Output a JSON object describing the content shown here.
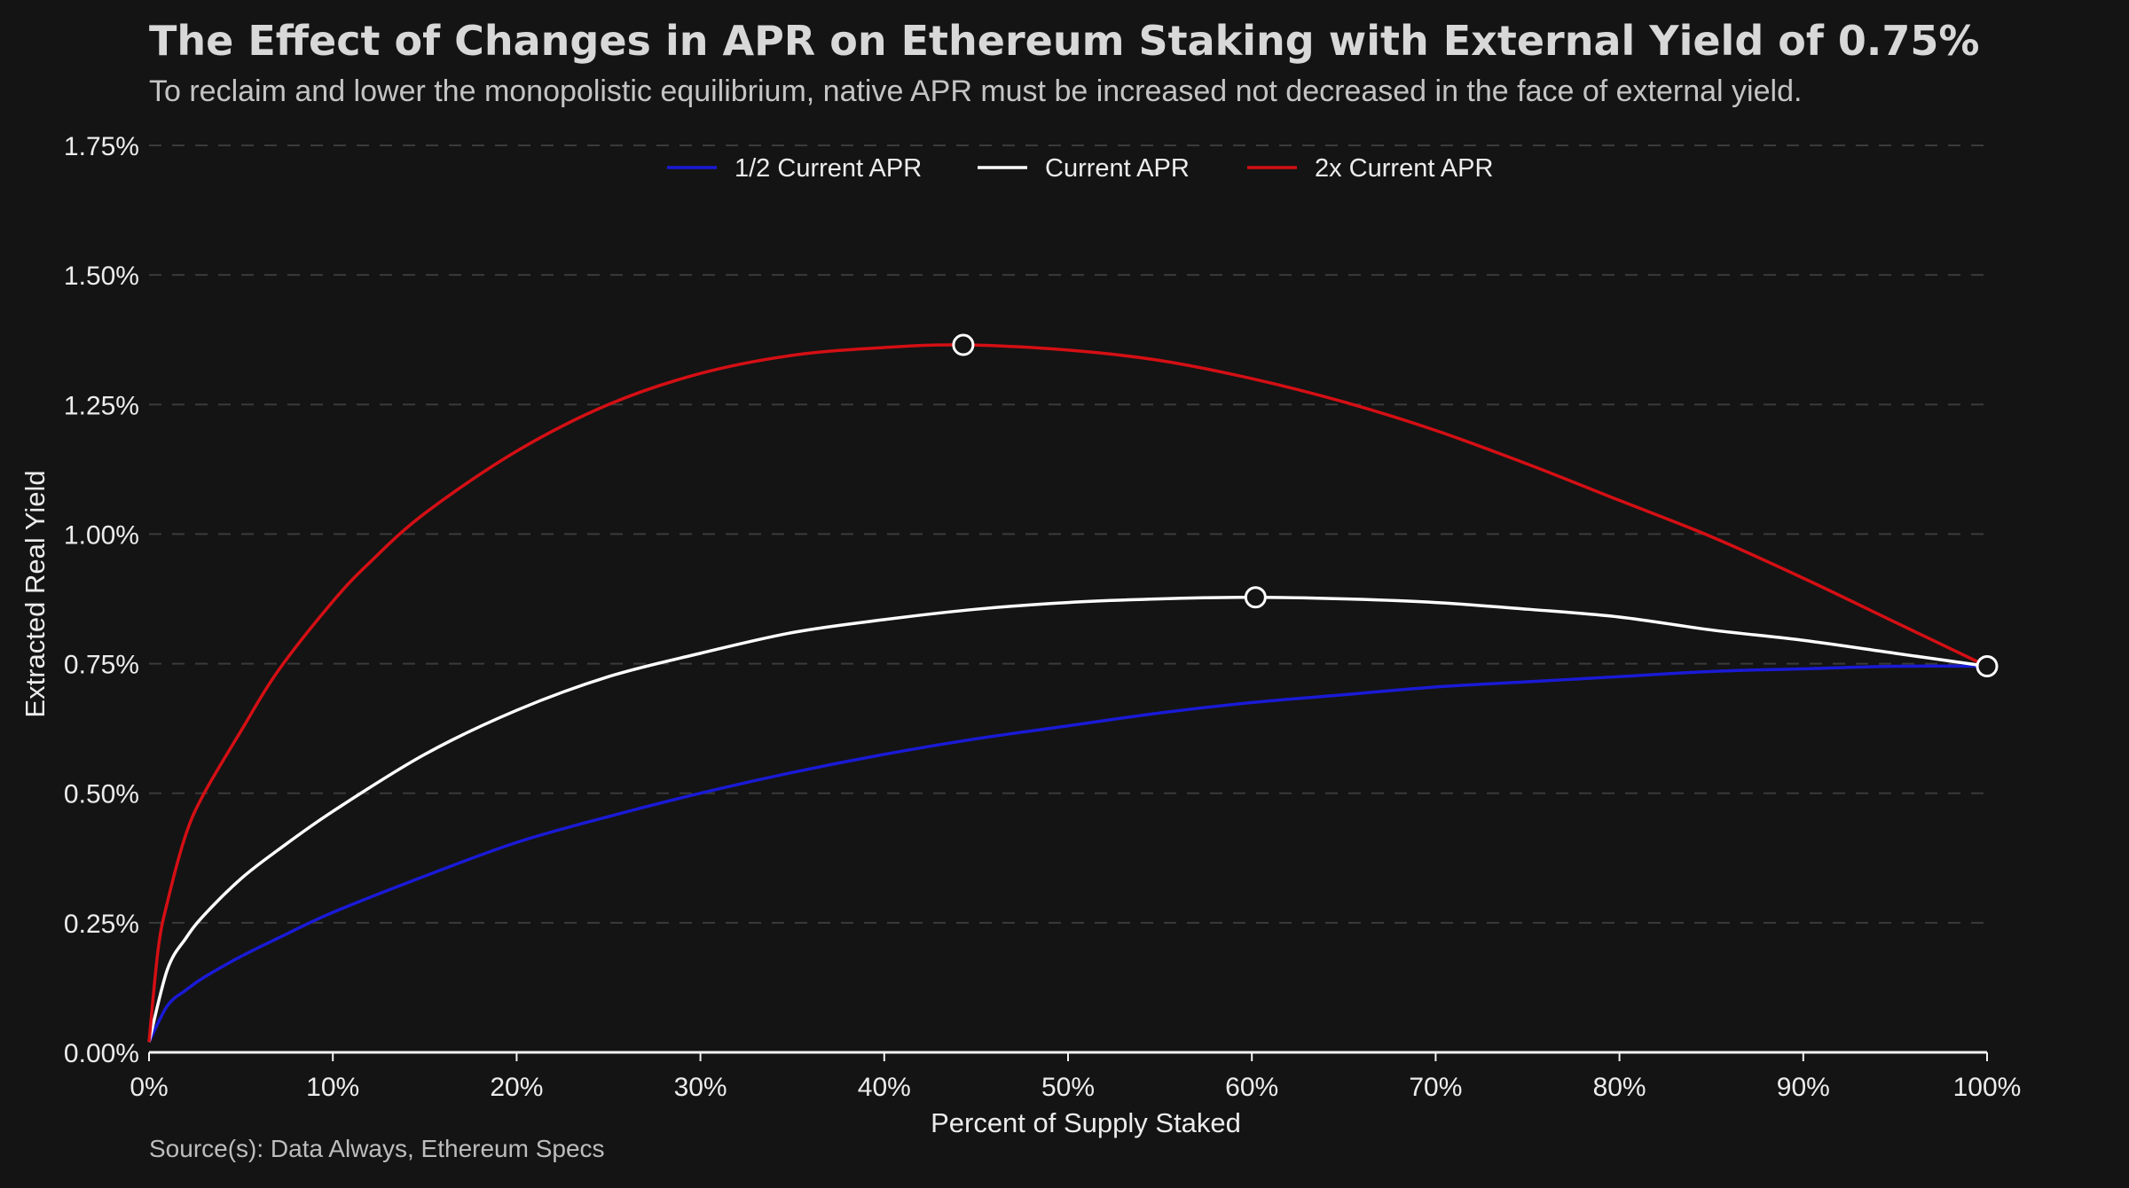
{
  "chart_data": {
    "type": "line",
    "title": "The Effect of Changes in APR on Ethereum Staking with External Yield of 0.75%",
    "subtitle": "To reclaim and lower the monopolistic equilibrium, native APR must be increased not decreased in the face of external yield.",
    "source": "Source(s): Data Always, Ethereum Specs",
    "xlabel": "Percent of Supply Staked",
    "ylabel": "Extracted Real Yield",
    "xlim": [
      0,
      100
    ],
    "ylim": [
      0,
      1.75
    ],
    "x_ticks": [
      0,
      10,
      20,
      30,
      40,
      50,
      60,
      70,
      80,
      90,
      100
    ],
    "x_tick_labels": [
      "0%",
      "10%",
      "20%",
      "30%",
      "40%",
      "50%",
      "60%",
      "70%",
      "80%",
      "90%",
      "100%"
    ],
    "y_ticks": [
      0,
      0.25,
      0.5,
      0.75,
      1.0,
      1.25,
      1.5,
      1.75
    ],
    "y_tick_labels": [
      "0.00%",
      "0.25%",
      "0.50%",
      "0.75%",
      "1.00%",
      "1.25%",
      "1.50%",
      "1.75%"
    ],
    "grid": "horizontal dashed",
    "legend_position": "top-center",
    "series": [
      {
        "name": "1/2 Current APR",
        "color": "#1a1ad6",
        "x": [
          0,
          1,
          2,
          3,
          5,
          7,
          10,
          15,
          20,
          25,
          30,
          35,
          40,
          45,
          50,
          55,
          60,
          65,
          70,
          75,
          80,
          85,
          90,
          95,
          100
        ],
        "y": [
          0.02,
          0.09,
          0.12,
          0.145,
          0.185,
          0.22,
          0.27,
          0.34,
          0.405,
          0.455,
          0.5,
          0.54,
          0.575,
          0.605,
          0.63,
          0.655,
          0.675,
          0.69,
          0.705,
          0.715,
          0.725,
          0.735,
          0.74,
          0.745,
          0.745
        ]
      },
      {
        "name": "Current APR",
        "color": "#ffffff",
        "x": [
          0,
          1,
          2,
          3,
          5,
          7,
          10,
          15,
          20,
          25,
          30,
          35,
          40,
          45,
          50,
          55,
          60,
          65,
          70,
          75,
          80,
          85,
          90,
          95,
          100
        ],
        "y": [
          0.02,
          0.16,
          0.22,
          0.265,
          0.335,
          0.39,
          0.465,
          0.575,
          0.66,
          0.725,
          0.77,
          0.81,
          0.835,
          0.855,
          0.868,
          0.875,
          0.878,
          0.875,
          0.868,
          0.855,
          0.84,
          0.815,
          0.795,
          0.77,
          0.745
        ]
      },
      {
        "name": "2x Current APR",
        "color": "#d40f14",
        "x": [
          0,
          0.5,
          1,
          2,
          3,
          5,
          7,
          10,
          12,
          15,
          20,
          25,
          30,
          35,
          40,
          44.3,
          50,
          55,
          60,
          65,
          70,
          75,
          80,
          85,
          90,
          95,
          100
        ],
        "y": [
          0.02,
          0.2,
          0.29,
          0.42,
          0.5,
          0.62,
          0.735,
          0.87,
          0.945,
          1.04,
          1.16,
          1.25,
          1.31,
          1.345,
          1.36,
          1.365,
          1.355,
          1.335,
          1.3,
          1.255,
          1.2,
          1.135,
          1.065,
          0.995,
          0.915,
          0.83,
          0.745
        ]
      }
    ],
    "markers": [
      {
        "series": "2x Current APR",
        "x": 44.3,
        "y": 1.365
      },
      {
        "series": "Current APR",
        "x": 60.2,
        "y": 0.878
      },
      {
        "series": "all",
        "x": 100,
        "y": 0.745
      }
    ]
  }
}
